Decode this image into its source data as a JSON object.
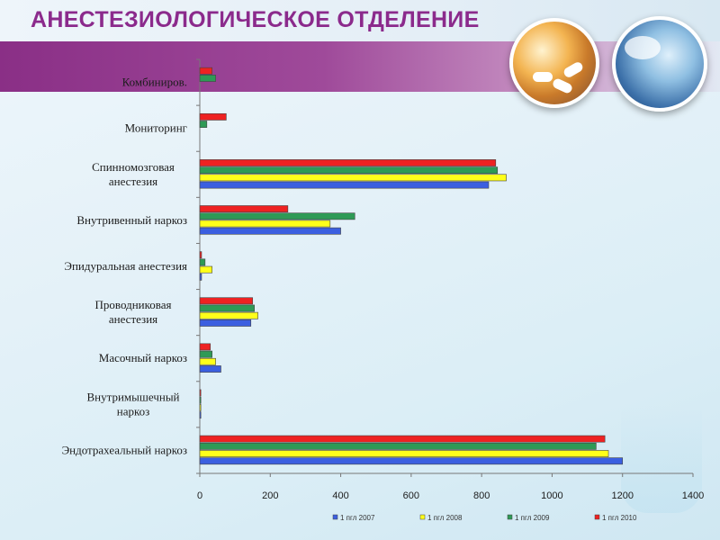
{
  "header": {
    "title": "АНЕСТЕЗИОЛОГИЧЕСКОЕ ОТДЕЛЕНИЕ"
  },
  "colors": {
    "title": "#8b2a8c",
    "band": "#8a2f86"
  },
  "chart_data": {
    "type": "bar",
    "orientation": "horizontal",
    "title": "",
    "xlabel": "",
    "ylabel": "",
    "xlim": [
      0,
      1400
    ],
    "x_ticks": [
      0,
      200,
      400,
      600,
      800,
      1000,
      1200,
      1400
    ],
    "grid": false,
    "legend_position": "bottom-right",
    "categories": [
      [
        "Комбиниров."
      ],
      [
        "Мониторинг"
      ],
      [
        "Спинномозговая",
        "анестезия"
      ],
      [
        "Внутривенный наркоз"
      ],
      [
        "Эпидуральная анестезия"
      ],
      [
        "Проводниковая",
        "анестезия"
      ],
      [
        "Масочный наркоз"
      ],
      [
        "Внутримышечный",
        "наркоз"
      ],
      [
        "Эндотрахеальный наркоз"
      ]
    ],
    "series": [
      {
        "name": "1 пгл 2007",
        "color": "#3b5fe0",
        "values": [
          0,
          0,
          820,
          400,
          5,
          145,
          60,
          3,
          1200
        ]
      },
      {
        "name": "1 пгл 2008",
        "color": "#ffff1a",
        "values": [
          0,
          0,
          870,
          370,
          35,
          165,
          45,
          3,
          1160
        ]
      },
      {
        "name": "1 пгл 2009",
        "color": "#2e9a56",
        "values": [
          45,
          20,
          845,
          440,
          15,
          155,
          35,
          3,
          1125
        ]
      },
      {
        "name": "1 пгл 2010",
        "color": "#ee2222",
        "values": [
          35,
          75,
          840,
          250,
          5,
          150,
          30,
          3,
          1150
        ]
      }
    ]
  }
}
